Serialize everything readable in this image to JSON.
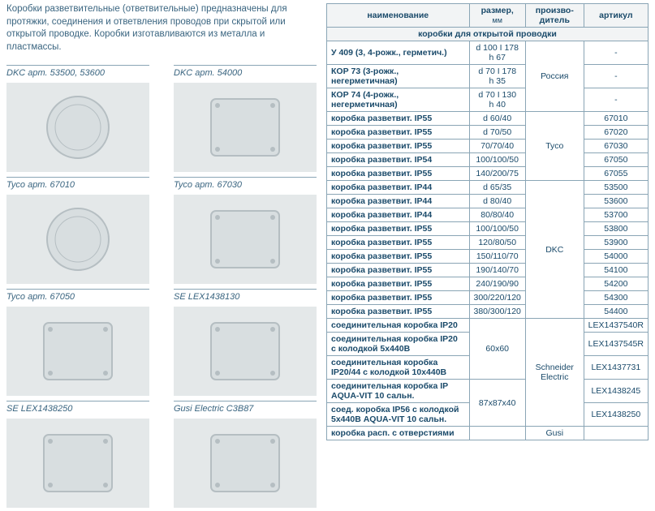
{
  "intro": "Коробки разветвительные (ответвительные) предназначены для протяжки, соединения и ответвления проводов при скрытой или открытой проводке. Коробки изготавливаются из металла и пластмассы.",
  "products": [
    {
      "label": "DKC арт. 53500, 53600",
      "shape": "circle"
    },
    {
      "label": "DKC арт. 54000",
      "shape": "square"
    },
    {
      "label": "Tyco арт. 67010",
      "shape": "circle"
    },
    {
      "label": "Tyco арт. 67030",
      "shape": "square"
    },
    {
      "label": "Tyco арт. 67050",
      "shape": "square"
    },
    {
      "label": "SE LEX1438130",
      "shape": "square"
    },
    {
      "label": "SE LEX1438250",
      "shape": "square"
    },
    {
      "label": "Gusi Electric C3B87",
      "shape": "square"
    }
  ],
  "table": {
    "headers": {
      "name": "наименование",
      "size": "размер,",
      "size_sub": "мм",
      "mfr": "произво-",
      "mfr_sub": "дитель",
      "art": "артикул"
    },
    "section": "коробки для открытой проводки",
    "groups": [
      {
        "mfr": "Россия",
        "rows": [
          {
            "name": "У 409 (3, 4-рожк., герметич.)",
            "size": "d 100 I 178",
            "size2": "h 67",
            "art": "-"
          },
          {
            "name": "КОР 73 (3-рожк., негерметичная)",
            "size": "d 70 I 178",
            "size2": "h 35",
            "art": "-"
          },
          {
            "name": "КОР 74 (4-рожк., негерметичная)",
            "size": "d 70 I 130",
            "size2": "h 40",
            "art": "-"
          }
        ]
      },
      {
        "mfr": "Tyco",
        "rows": [
          {
            "name": "коробка разветвит. IP55",
            "size": "d 60/40",
            "art": "67010"
          },
          {
            "name": "коробка разветвит. IP55",
            "size": "d 70/50",
            "art": "67020"
          },
          {
            "name": "коробка разветвит. IP55",
            "size": "70/70/40",
            "art": "67030"
          },
          {
            "name": "коробка разветвит. IP54",
            "size": "100/100/50",
            "art": "67050"
          },
          {
            "name": "коробка разветвит. IP55",
            "size": "140/200/75",
            "art": "67055"
          }
        ]
      },
      {
        "mfr": "DKC",
        "rows": [
          {
            "name": "коробка разветвит. IP44",
            "size": "d 65/35",
            "art": "53500"
          },
          {
            "name": "коробка разветвит. IP44",
            "size": "d 80/40",
            "art": "53600"
          },
          {
            "name": "коробка разветвит. IP44",
            "size": "80/80/40",
            "art": "53700"
          },
          {
            "name": "коробка разветвит. IP55",
            "size": "100/100/50",
            "art": "53800"
          },
          {
            "name": "коробка разветвит. IP55",
            "size": "120/80/50",
            "art": "53900"
          },
          {
            "name": "коробка разветвит. IP55",
            "size": "150/110/70",
            "art": "54000"
          },
          {
            "name": "коробка разветвит. IP55",
            "size": "190/140/70",
            "art": "54100"
          },
          {
            "name": "коробка разветвит. IP55",
            "size": "240/190/90",
            "art": "54200"
          },
          {
            "name": "коробка разветвит. IP55",
            "size": "300/220/120",
            "art": "54300"
          },
          {
            "name": "коробка разветвит. IP55",
            "size": "380/300/120",
            "art": "54400"
          }
        ]
      },
      {
        "mfr": "Schneider Electric",
        "size_spans": [
          {
            "text": "60x60",
            "rows": 3
          },
          {
            "text": "87x87x40",
            "rows": 2
          }
        ],
        "rows": [
          {
            "name": "соединительная коробка IP20",
            "art": "LEX1437540R"
          },
          {
            "name": "соединительная коробка IP20 с колодкой 5x440В",
            "art": "LEX1437545R"
          },
          {
            "name": "соединительная коробка IP20/44 с колодкой 10x440В",
            "art": "LEX1437731"
          },
          {
            "name": "соединительная коробка IP AQUA-VIT 10 сальн.",
            "art": "LEX1438245"
          },
          {
            "name": "соед. коробка IP56 с колодкой 5x440В AQUA-VIT 10 сальн.",
            "art": "LEX1438250"
          }
        ]
      },
      {
        "mfr": "Gusi",
        "rows": [
          {
            "name": "коробка расп. с отверстиями",
            "size": "",
            "art": ""
          }
        ]
      }
    ]
  },
  "colors": {
    "border": "#8aa5b5",
    "text": "#1a4a6a",
    "img_bg": "#e4e8e9",
    "shape_fill": "#d8dee0",
    "shape_stroke": "#b5bec2"
  }
}
